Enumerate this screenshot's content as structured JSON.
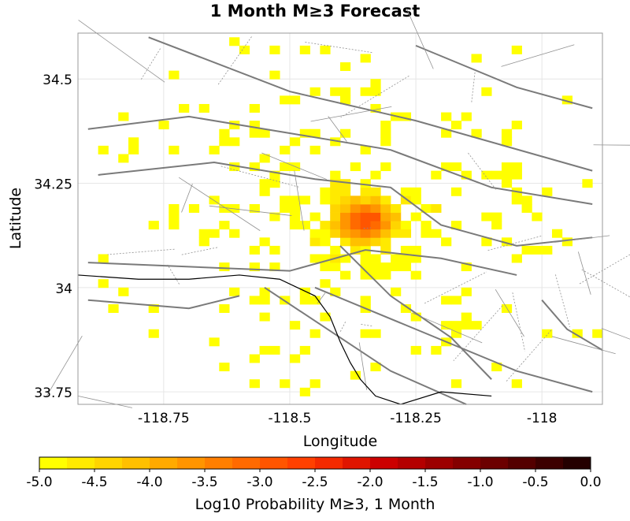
{
  "title": "1 Month M≥3 Forecast",
  "map": {
    "lon_range": [
      -118.92,
      -117.88
    ],
    "lat_range": [
      33.72,
      34.61
    ],
    "x_ticks": [
      -118.75,
      -118.5,
      -118.25,
      -118.0
    ],
    "x_tick_labels": [
      "-118.75",
      "-118.5",
      "-118.25",
      "-118"
    ],
    "y_ticks": [
      33.75,
      34.0,
      34.25,
      34.5
    ],
    "y_tick_labels": [
      "33.75",
      "34",
      "34.25",
      "34.5"
    ],
    "xlabel": "Longitude",
    "ylabel": "Latitude",
    "grid": true,
    "cell_size_deg": 0.02,
    "hotspot_center": {
      "lon": -118.35,
      "lat": 34.16
    },
    "colorscale": "hot (yellow to black)"
  },
  "colorbar": {
    "min": -5.0,
    "max": 0.0,
    "ticks": [
      -5.0,
      -4.5,
      -4.0,
      -3.5,
      -3.0,
      -2.5,
      -2.0,
      -1.5,
      -1.0,
      -0.5,
      0.0
    ],
    "tick_labels": [
      "-5.0",
      "-4.5",
      "-4.0",
      "-3.5",
      "-3.0",
      "-2.5",
      "-2.0",
      "-1.5",
      "-1.0",
      "-0.5",
      "0.0"
    ],
    "label": "Log10 Probability M≥3, 1 Month",
    "colors": [
      "#ffff00",
      "#ffea00",
      "#ffd500",
      "#ffc000",
      "#ffaa00",
      "#ff9500",
      "#ff7f00",
      "#ff6a00",
      "#ff5500",
      "#ff4000",
      "#f42a00",
      "#e01500",
      "#cc0000",
      "#b40000",
      "#9c0000",
      "#840000",
      "#6c0000",
      "#540000",
      "#3c0000",
      "#240000"
    ]
  }
}
